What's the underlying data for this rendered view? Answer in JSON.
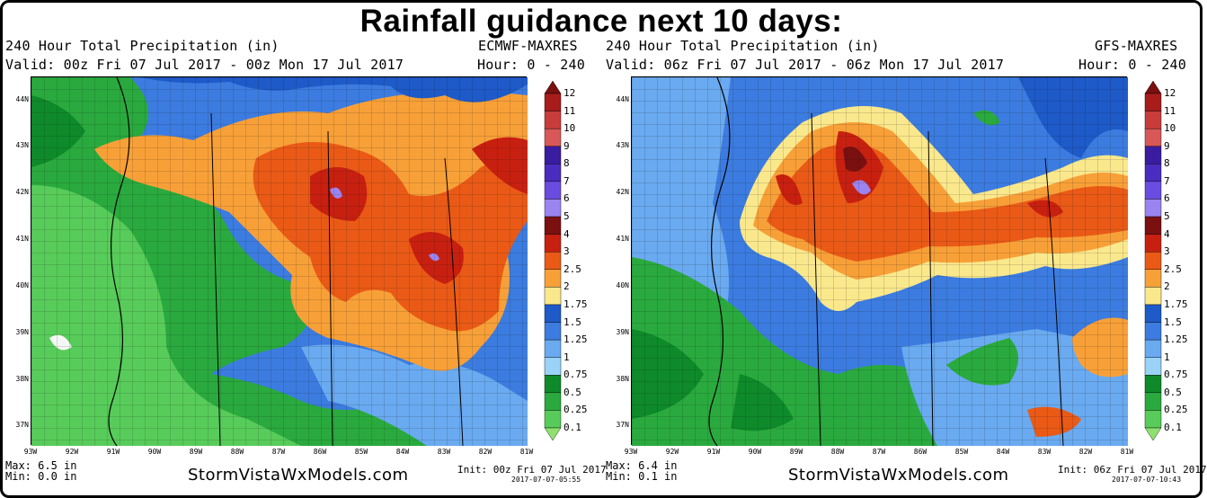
{
  "title": "Rainfall guidance next 10 days:",
  "panels": [
    {
      "header1": "240 Hour Total Precipitation (in)",
      "model": "ECMWF-MAXRES",
      "valid": "Valid: 00z Fri 07 Jul 2017 - 00z Mon 17 Jul 2017",
      "hour": "Hour: 0 - 240",
      "max": "Max: 6.5 in",
      "min": "Min: 0.0 in",
      "site": "StormVistaWxModels.com",
      "init": "Init: 00z Fri 07 Jul 2017",
      "stamp": "2017-07-07-05:55"
    },
    {
      "header1": "240 Hour Total Precipitation (in)",
      "model": "GFS-MAXRES",
      "valid": "Valid: 06z Fri 07 Jul 2017 - 06z Mon 17 Jul 2017",
      "hour": "Hour: 0 - 240",
      "max": "Max: 6.4 in",
      "min": "Min: 0.1 in",
      "site": "StormVistaWxModels.com",
      "init": "Init: 06z Fri 07 Jul 2017",
      "stamp": "2017-07-07-10:43"
    }
  ],
  "lat_labels": [
    "44N",
    "43N",
    "42N",
    "41N",
    "40N",
    "39N",
    "38N",
    "37N"
  ],
  "lon_labels": [
    "93W",
    "92W",
    "91W",
    "90W",
    "89W",
    "88W",
    "87W",
    "86W",
    "85W",
    "84W",
    "83W",
    "82W",
    "81W"
  ],
  "colorbar": {
    "ticks": [
      "12",
      "11",
      "10",
      "9",
      "8",
      "7",
      "6",
      "5",
      "4",
      "3",
      "2.5",
      "2",
      "1.75",
      "1.5",
      "1.25",
      "1",
      "0.75",
      "0.5",
      "0.25",
      "0.1"
    ],
    "colors": [
      "#7a1010",
      "#a81c1c",
      "#c83c3c",
      "#d85858",
      "#3a1ca0",
      "#4a2cc0",
      "#6a4ce0",
      "#9a84f0",
      "#7a1010",
      "#c82010",
      "#ea5a16",
      "#f8a038",
      "#fae88c",
      "#1e5ac8",
      "#3c7ce0",
      "#6aaaf0",
      "#9ad2f8",
      "#0e8a2a",
      "#2aaa3e",
      "#58cc5a",
      "#8ee070"
    ]
  }
}
